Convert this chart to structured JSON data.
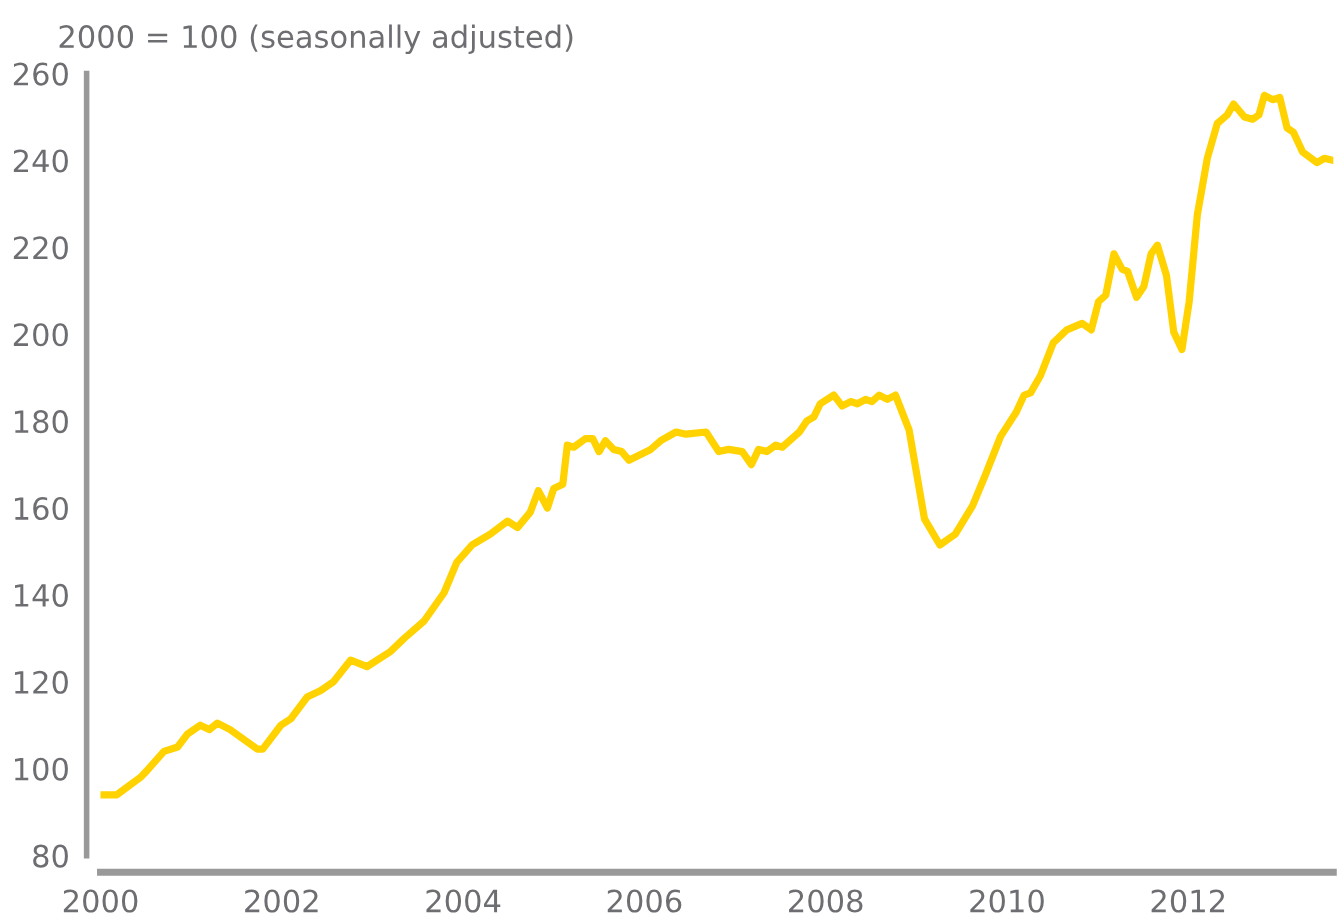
{
  "chart_data": {
    "type": "line",
    "ylabel": "2000 = 100 (seasonally adjusted)",
    "x": [
      2000.0,
      2000.18,
      2000.44,
      2000.51,
      2000.7,
      2000.85,
      2000.96,
      2001.1,
      2001.2,
      2001.29,
      2001.43,
      2001.73,
      2001.79,
      2001.99,
      2002.1,
      2002.28,
      2002.43,
      2002.57,
      2002.76,
      2002.94,
      2003.2,
      2003.35,
      2003.57,
      2003.79,
      2003.93,
      2004.1,
      2004.3,
      2004.49,
      2004.6,
      2004.74,
      2004.83,
      2004.93,
      2005.0,
      2005.1,
      2005.15,
      2005.22,
      2005.35,
      2005.43,
      2005.5,
      2005.57,
      2005.66,
      2005.75,
      2005.83,
      2006.07,
      2006.18,
      2006.35,
      2006.46,
      2006.68,
      2006.82,
      2006.93,
      2007.08,
      2007.18,
      2007.26,
      2007.35,
      2007.45,
      2007.52,
      2007.71,
      2007.79,
      2007.87,
      2007.94,
      2008.09,
      2008.18,
      2008.28,
      2008.35,
      2008.44,
      2008.51,
      2008.59,
      2008.68,
      2008.77,
      2008.92,
      2009.09,
      2009.26,
      2009.43,
      2009.62,
      2009.76,
      2009.93,
      2010.1,
      2010.19,
      2010.26,
      2010.37,
      2010.51,
      2010.66,
      2010.83,
      2010.93,
      2011.01,
      2011.09,
      2011.18,
      2011.27,
      2011.33,
      2011.43,
      2011.51,
      2011.59,
      2011.66,
      2011.76,
      2011.84,
      2011.93,
      2012.01,
      2012.1,
      2012.21,
      2012.32,
      2012.43,
      2012.5,
      2012.62,
      2012.71,
      2012.78,
      2012.84,
      2012.93,
      2013.01,
      2013.09,
      2013.16,
      2013.26,
      2013.42,
      2013.5,
      2013.6
    ],
    "series": [
      {
        "color": "#ffd200",
        "values": [
          94,
          94,
          98,
          99.5,
          104,
          105,
          108,
          110,
          109,
          110.5,
          109,
          104.5,
          104.5,
          110,
          111.5,
          116.5,
          118,
          120,
          125,
          123.5,
          127,
          130,
          134,
          140.5,
          147.5,
          151.5,
          154,
          157,
          155.5,
          159,
          164,
          160,
          164.5,
          165.5,
          174.5,
          174,
          176,
          176,
          173,
          175.5,
          173.5,
          173,
          171,
          173.5,
          175.5,
          177.5,
          177,
          177.5,
          173,
          173.5,
          173,
          170,
          173.5,
          173,
          174.5,
          174,
          177.5,
          180,
          181,
          184,
          186,
          183.5,
          184.5,
          184,
          185,
          184.5,
          186,
          185,
          186,
          178,
          157.5,
          151.5,
          154,
          160.5,
          167.5,
          176.5,
          182,
          186,
          186.5,
          190.5,
          198,
          201,
          202.5,
          201,
          207.5,
          209,
          218.5,
          215,
          214.5,
          208.5,
          211,
          218.5,
          220.5,
          213.5,
          200.5,
          196.5,
          207.5,
          227.5,
          240.5,
          248.5,
          250.5,
          253,
          250,
          249.5,
          250.5,
          255,
          254,
          254.5,
          247.5,
          246.5,
          242,
          239.5,
          240.5,
          240
        ]
      }
    ],
    "xlim": [
      2000,
      2013.6
    ],
    "ylim": [
      80,
      260
    ],
    "xticks": [
      2000,
      2002,
      2004,
      2006,
      2008,
      2010,
      2012
    ],
    "yticks": [
      80,
      100,
      120,
      140,
      160,
      180,
      200,
      220,
      240,
      260
    ],
    "grid": false,
    "line_style": "solid",
    "marker": "none"
  }
}
